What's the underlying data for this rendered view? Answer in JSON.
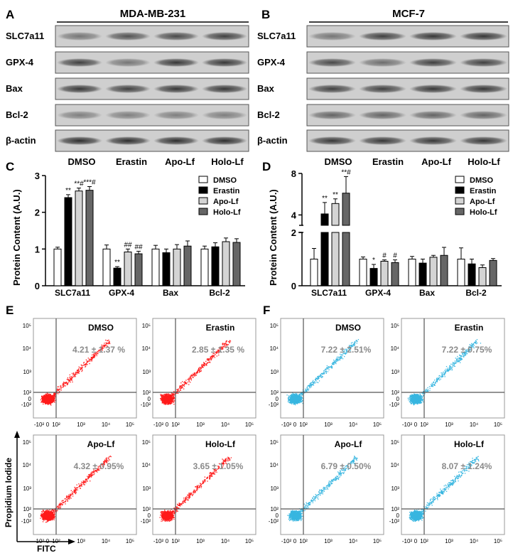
{
  "panels": {
    "A": {
      "letter": "A",
      "title": "MDA-MB-231",
      "rows": [
        "SLC7a11",
        "GPX-4",
        "Bax",
        "Bcl-2",
        "β-actin"
      ]
    },
    "B": {
      "letter": "B",
      "title": "MCF-7",
      "rows": [
        "SLC7a11",
        "GPX-4",
        "Bax",
        "Bcl-2",
        "β-actin"
      ]
    },
    "C": {
      "letter": "C"
    },
    "D": {
      "letter": "D"
    },
    "E": {
      "letter": "E"
    },
    "F": {
      "letter": "F"
    }
  },
  "lane_headers": [
    "DMSO",
    "Erastin",
    "Apo-Lf",
    "Holo-Lf"
  ],
  "colors": {
    "DMSO": "#ffffff",
    "Erastin": "#000000",
    "Apo-Lf": "#d4d4d4",
    "Holo-Lf": "#666666",
    "flow_E": "#ff1a1a",
    "flow_F": "#38b6e0",
    "stat_text": "#8a8a8a"
  },
  "chart_data": [
    {
      "panel": "C",
      "type": "bar",
      "ylabel": "Protein Content (A.U.)",
      "categories": [
        "SLC7a11",
        "GPX-4",
        "Bax",
        "Bcl-2"
      ],
      "ylim": [
        0,
        3
      ],
      "yticks": [
        "0",
        "1",
        "2",
        "3"
      ],
      "legend": "top-right",
      "series": [
        {
          "name": "DMSO",
          "values": [
            1.0,
            1.0,
            1.0,
            1.0
          ],
          "errors": [
            0.05,
            0.11,
            0.1,
            0.08
          ],
          "marks": [
            "",
            "",
            "",
            ""
          ]
        },
        {
          "name": "Erastin",
          "values": [
            2.4,
            0.48,
            0.9,
            1.06
          ],
          "errors": [
            0.08,
            0.04,
            0.1,
            0.11
          ],
          "marks": [
            "**",
            "**",
            "",
            ""
          ]
        },
        {
          "name": "Apo-Lf",
          "values": [
            2.58,
            0.92,
            1.0,
            1.2
          ],
          "errors": [
            0.08,
            0.08,
            0.12,
            0.1
          ],
          "marks": [
            "**#",
            "##",
            "",
            ""
          ]
        },
        {
          "name": "Holo-Lf",
          "values": [
            2.6,
            0.87,
            1.08,
            1.18
          ],
          "errors": [
            0.1,
            0.07,
            0.14,
            0.1
          ],
          "marks": [
            "***#",
            "##",
            "",
            ""
          ]
        }
      ]
    },
    {
      "panel": "D",
      "type": "bar",
      "ylabel": "Protein Content (A.U.)",
      "categories": [
        "SLC7a11",
        "GPX-4",
        "Bax",
        "Bcl-2"
      ],
      "y_axis_break": [
        2,
        3
      ],
      "ylim": [
        0,
        8
      ],
      "yticks": [
        "0",
        "2",
        "4",
        "8"
      ],
      "legend": "top-right",
      "series": [
        {
          "name": "DMSO",
          "values": [
            1.0,
            1.0,
            1.0,
            1.0
          ],
          "errors": [
            0.4,
            0.08,
            0.1,
            0.42
          ],
          "marks": [
            "",
            "",
            "",
            ""
          ]
        },
        {
          "name": "Erastin",
          "values": [
            4.1,
            0.65,
            0.85,
            0.82
          ],
          "errors": [
            1.1,
            0.15,
            0.15,
            0.18
          ],
          "marks": [
            "**",
            "*",
            "",
            ""
          ]
        },
        {
          "name": "Apo-Lf",
          "values": [
            5.1,
            0.92,
            1.07,
            0.68
          ],
          "errors": [
            0.45,
            0.05,
            0.07,
            0.1
          ],
          "marks": [
            "**",
            "#",
            "",
            ""
          ]
        },
        {
          "name": "Holo-Lf",
          "values": [
            6.1,
            0.87,
            1.14,
            0.95
          ],
          "errors": [
            1.6,
            0.1,
            0.3,
            0.07
          ],
          "marks": [
            "**#",
            "#",
            "",
            ""
          ]
        }
      ]
    }
  ],
  "flow": {
    "xlabel": "FITC",
    "ylabel": "Propidium Iodide",
    "yticks": [
      "10⁵",
      "10⁴",
      "10³",
      "10²",
      "0",
      "-10²"
    ],
    "xticks": [
      "-10²",
      "0",
      "10²",
      "10³",
      "10⁴",
      "10⁵"
    ],
    "E": [
      {
        "label": "DMSO",
        "stat": "4.21 ± 1.37 %"
      },
      {
        "label": "Erastin",
        "stat": "2.85 ± 1.35 %"
      },
      {
        "label": "Apo-Lf",
        "stat": "4.32 ± 0.95%"
      },
      {
        "label": "Holo-Lf",
        "stat": "3.65 ± 1.05%"
      }
    ],
    "F": [
      {
        "label": "DMSO",
        "stat": "7.22 ± 2.51%"
      },
      {
        "label": "Erastin",
        "stat": "7.22 ± 0.75%"
      },
      {
        "label": "Apo-Lf",
        "stat": "6.79 ± 0.50%"
      },
      {
        "label": "Holo-Lf",
        "stat": "8.07 ± 1.24%"
      }
    ]
  }
}
